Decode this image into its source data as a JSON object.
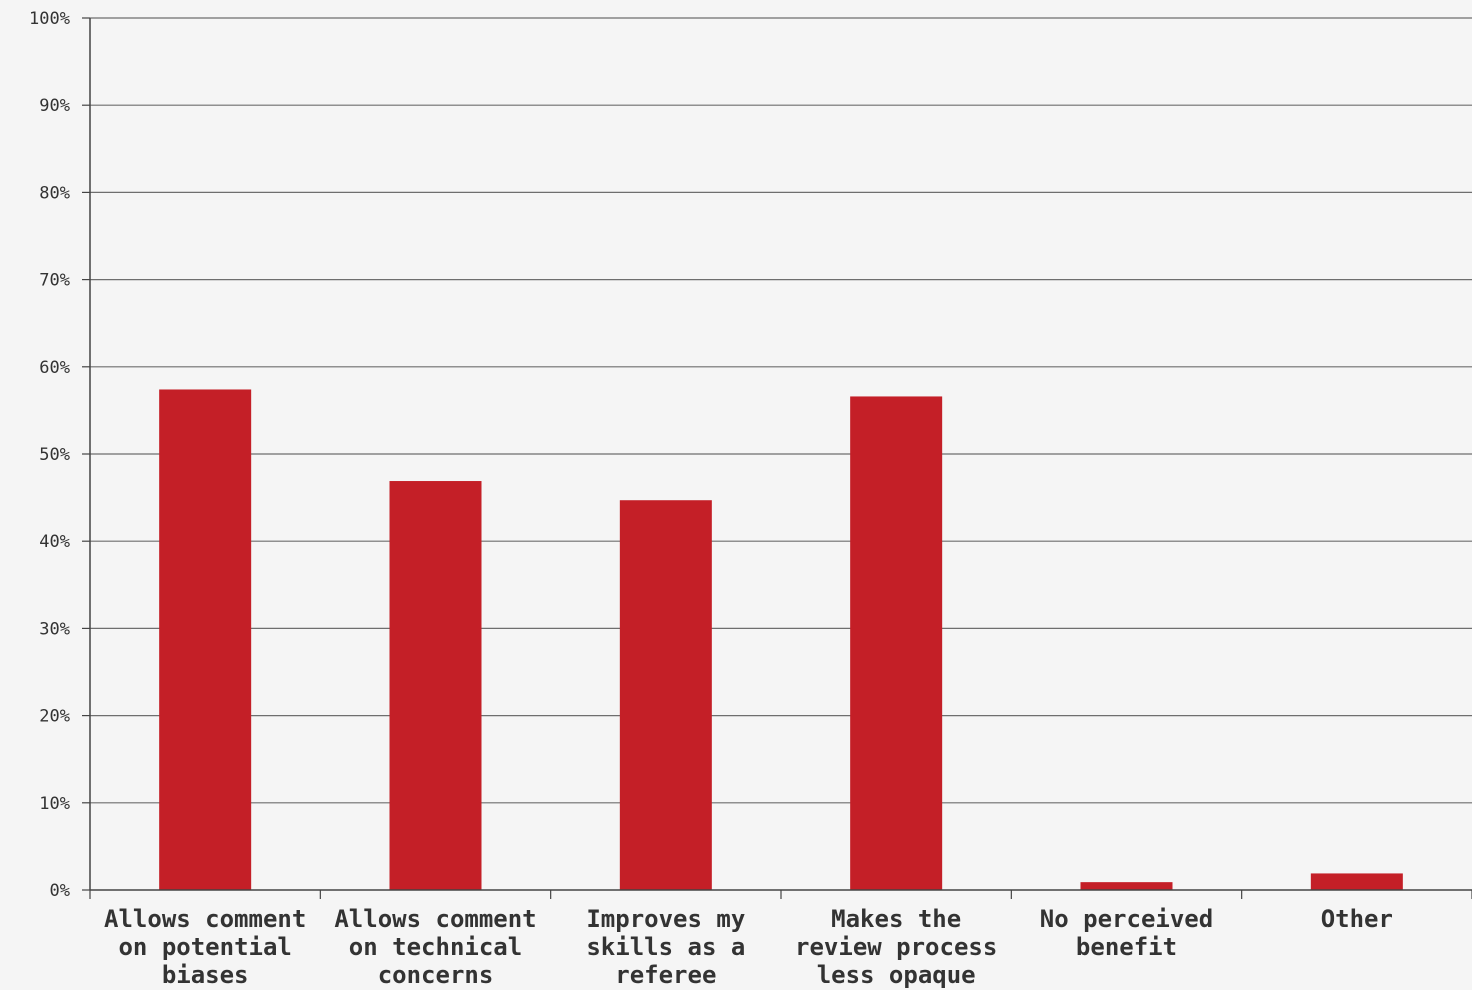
{
  "chart_data": {
    "type": "bar",
    "categories": [
      [
        "Allows comment",
        "on potential",
        "biases"
      ],
      [
        "Allows comment",
        "on technical",
        "concerns"
      ],
      [
        "Improves my",
        "skills as a",
        "referee"
      ],
      [
        "Makes the",
        "review process",
        "less opaque"
      ],
      [
        "No perceived",
        "benefit"
      ],
      [
        "Other"
      ]
    ],
    "values": [
      57.4,
      46.9,
      44.7,
      56.6,
      0.9,
      1.9
    ],
    "ylim": [
      0,
      100
    ],
    "yticks": [
      "0%",
      "10%",
      "20%",
      "30%",
      "40%",
      "50%",
      "60%",
      "70%",
      "80%",
      "90%",
      "100%"
    ],
    "grid": true,
    "bar_color": "#c41f27",
    "grid_color": "#6e6e6e",
    "axis_color": "#444444"
  }
}
